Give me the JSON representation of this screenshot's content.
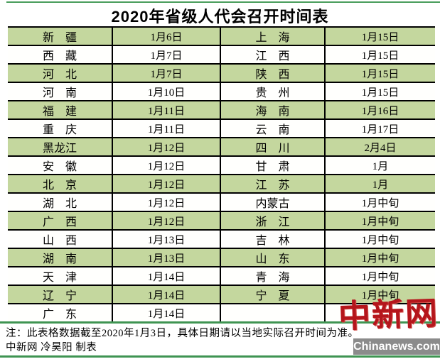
{
  "title": "2020年省级人代会召开时间表",
  "chart_data": {
    "type": "table",
    "title": "2020年省级人代会召开时间表",
    "rows": [
      {
        "p1": "新疆",
        "d1": "1月6日",
        "p2": "上海",
        "d2": "1月15日"
      },
      {
        "p1": "西藏",
        "d1": "1月7日",
        "p2": "江西",
        "d2": "1月15日"
      },
      {
        "p1": "河北",
        "d1": "1月7日",
        "p2": "陕西",
        "d2": "1月15日"
      },
      {
        "p1": "河南",
        "d1": "1月10日",
        "p2": "贵州",
        "d2": "1月15日"
      },
      {
        "p1": "福建",
        "d1": "1月11日",
        "p2": "海南",
        "d2": "1月16日"
      },
      {
        "p1": "重庆",
        "d1": "1月11日",
        "p2": "云南",
        "d2": "1月17日"
      },
      {
        "p1": "黑龙江",
        "d1": "1月12日",
        "p2": "四川",
        "d2": "2月4日"
      },
      {
        "p1": "安徽",
        "d1": "1月12日",
        "p2": "甘肃",
        "d2": "1月"
      },
      {
        "p1": "北京",
        "d1": "1月12日",
        "p2": "江苏",
        "d2": "1月"
      },
      {
        "p1": "湖北",
        "d1": "1月12日",
        "p2": "内蒙古",
        "d2": "1月中旬"
      },
      {
        "p1": "广西",
        "d1": "1月12日",
        "p2": "浙江",
        "d2": "1月中旬"
      },
      {
        "p1": "山西",
        "d1": "1月13日",
        "p2": "吉林",
        "d2": "1月中旬"
      },
      {
        "p1": "湖南",
        "d1": "1月13日",
        "p2": "山东",
        "d2": "1月中旬"
      },
      {
        "p1": "天津",
        "d1": "1月14日",
        "p2": "青海",
        "d2": "1月中旬"
      },
      {
        "p1": "辽宁",
        "d1": "1月14日",
        "p2": "宁夏",
        "d2": "1月中旬"
      },
      {
        "p1": "广东",
        "d1": "1月14日",
        "p2": "",
        "d2": "",
        "diagonal": true
      }
    ]
  },
  "notes": {
    "line1": "注：此表格数据截至2020年1月3日，具体日期请以当地实际召开时间为准。",
    "line2": "中新网 冷昊阳 制表"
  },
  "logo": {
    "cn": "中新网",
    "en": "Chinanews.com"
  },
  "colors": {
    "row_green": "#c4d79e",
    "row_white": "#fffffd",
    "accent_green": "#3f9452",
    "border_black": "#000000",
    "logo_red": "#b5161c",
    "logo_banner_gray": "#8b8b8b"
  }
}
